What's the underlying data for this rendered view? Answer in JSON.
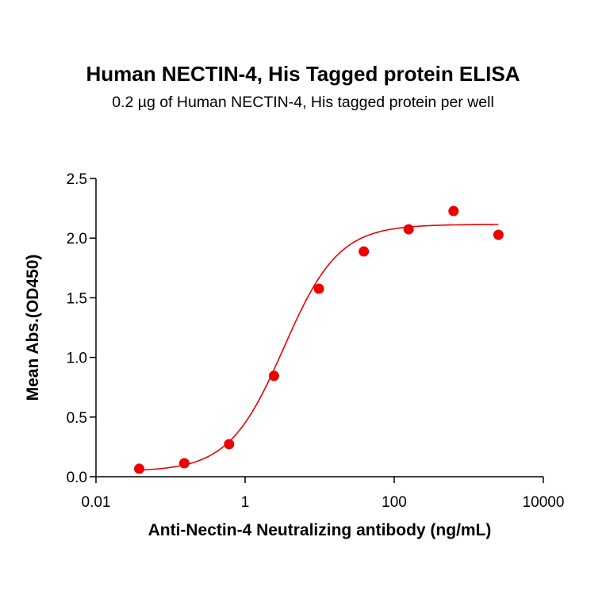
{
  "chart_data": {
    "type": "scatter",
    "title": "Human NECTIN-4, His Tagged protein ELISA",
    "subtitle": "0.2 µg of Human NECTIN-4, His tagged protein per well",
    "xlabel": "Anti-Nectin-4 Neutralizing antibody (ng/mL)",
    "ylabel": "Mean Abs.(OD450)",
    "xscale": "log",
    "xlim": [
      0.01,
      10000
    ],
    "ylim": [
      0,
      2.5
    ],
    "xticks": [
      "0.01",
      "1",
      "100",
      "10000"
    ],
    "yticks": [
      "0.0",
      "0.5",
      "1.0",
      "1.5",
      "2.0",
      "2.5"
    ],
    "grid": false,
    "legend": null,
    "series": [
      {
        "name": "Human NECTIN-4, His Tagged protein",
        "color": "#ee0000",
        "marker": "circle",
        "fit": "4-parameter logistic",
        "x": [
          0.038,
          0.153,
          0.61,
          2.44,
          9.77,
          39.1,
          156,
          625,
          2500
        ],
        "y": [
          0.067,
          0.113,
          0.273,
          0.845,
          1.576,
          1.888,
          2.074,
          2.227,
          2.028
        ]
      }
    ]
  }
}
